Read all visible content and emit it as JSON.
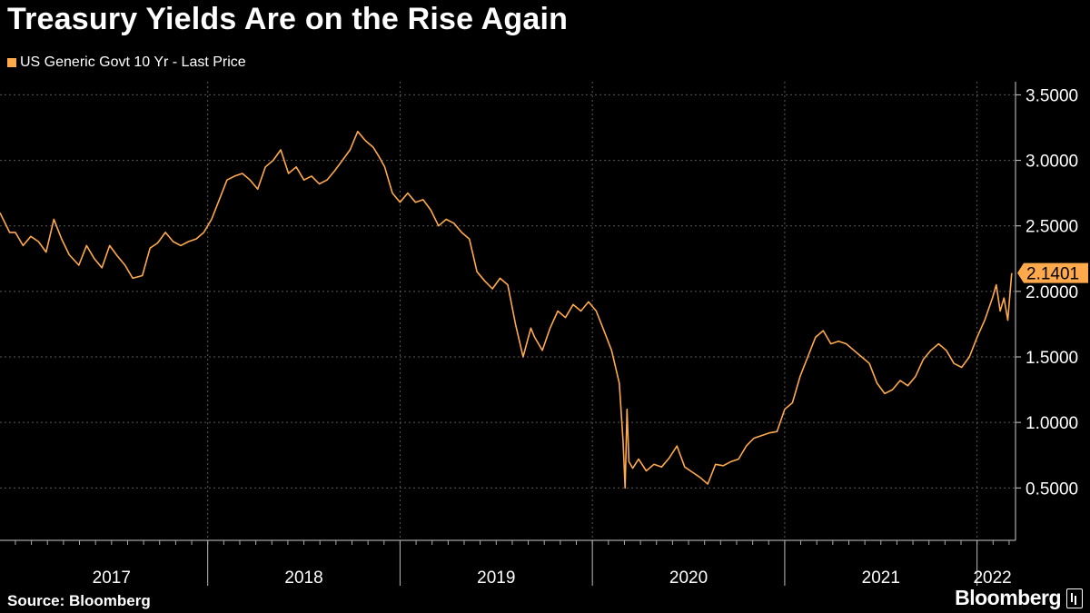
{
  "colors": {
    "background": "#000000",
    "series": "#FFA94D",
    "grid": "#5A5A5A",
    "text": "#FFFFFF"
  },
  "header": {
    "title": "Treasury Yields Are on the Rise Again"
  },
  "footer": {
    "source": "Source: Bloomberg",
    "brand": "Bloomberg",
    "brand_icon": "bloomberg-terminal-icon"
  },
  "chart_data": {
    "type": "line",
    "title": "Treasury Yields Are on the Rise Again",
    "xlabel": "",
    "ylabel": "",
    "grid": true,
    "legend_placement": "top-left",
    "ylim": [
      0.1,
      3.6
    ],
    "yticks": [
      0.5,
      1.0,
      1.5,
      2.0,
      2.5,
      3.0,
      3.5
    ],
    "ytick_labels": [
      "0.5000",
      "1.0000",
      "1.5000",
      "2.0000",
      "2.5000",
      "3.0000",
      "3.5000"
    ],
    "xlim": [
      2016.92,
      2022.2
    ],
    "year_boundaries": [
      2018,
      2019,
      2020,
      2021,
      2022
    ],
    "xtick_labels": [
      {
        "label": "2017",
        "x": 2017.5
      },
      {
        "label": "2018",
        "x": 2018.5
      },
      {
        "label": "2019",
        "x": 2019.5
      },
      {
        "label": "2020",
        "x": 2020.5
      },
      {
        "label": "2021",
        "x": 2021.5
      },
      {
        "label": "2022",
        "x": 2022.08
      }
    ],
    "last_value": {
      "value": 2.14,
      "label": "2.1401"
    },
    "series": [
      {
        "name": "US Generic Govt 10 Yr - Last Price",
        "points": [
          [
            2016.92,
            2.6
          ],
          [
            2016.97,
            2.45
          ],
          [
            2017.0,
            2.45
          ],
          [
            2017.04,
            2.35
          ],
          [
            2017.08,
            2.42
          ],
          [
            2017.12,
            2.38
          ],
          [
            2017.16,
            2.3
          ],
          [
            2017.2,
            2.55
          ],
          [
            2017.24,
            2.4
          ],
          [
            2017.28,
            2.28
          ],
          [
            2017.33,
            2.2
          ],
          [
            2017.37,
            2.35
          ],
          [
            2017.41,
            2.25
          ],
          [
            2017.45,
            2.18
          ],
          [
            2017.49,
            2.35
          ],
          [
            2017.53,
            2.27
          ],
          [
            2017.57,
            2.2
          ],
          [
            2017.61,
            2.1
          ],
          [
            2017.66,
            2.12
          ],
          [
            2017.7,
            2.33
          ],
          [
            2017.74,
            2.37
          ],
          [
            2017.78,
            2.45
          ],
          [
            2017.82,
            2.38
          ],
          [
            2017.86,
            2.35
          ],
          [
            2017.9,
            2.38
          ],
          [
            2017.94,
            2.4
          ],
          [
            2017.98,
            2.45
          ],
          [
            2018.02,
            2.55
          ],
          [
            2018.06,
            2.7
          ],
          [
            2018.1,
            2.85
          ],
          [
            2018.14,
            2.88
          ],
          [
            2018.18,
            2.9
          ],
          [
            2018.22,
            2.85
          ],
          [
            2018.26,
            2.78
          ],
          [
            2018.3,
            2.95
          ],
          [
            2018.34,
            3.0
          ],
          [
            2018.38,
            3.08
          ],
          [
            2018.42,
            2.9
          ],
          [
            2018.46,
            2.95
          ],
          [
            2018.5,
            2.85
          ],
          [
            2018.54,
            2.88
          ],
          [
            2018.58,
            2.82
          ],
          [
            2018.62,
            2.85
          ],
          [
            2018.66,
            2.92
          ],
          [
            2018.7,
            3.0
          ],
          [
            2018.74,
            3.08
          ],
          [
            2018.78,
            3.22
          ],
          [
            2018.82,
            3.15
          ],
          [
            2018.86,
            3.1
          ],
          [
            2018.89,
            3.03
          ],
          [
            2018.92,
            2.95
          ],
          [
            2018.96,
            2.75
          ],
          [
            2019.0,
            2.68
          ],
          [
            2019.04,
            2.75
          ],
          [
            2019.08,
            2.68
          ],
          [
            2019.12,
            2.7
          ],
          [
            2019.16,
            2.62
          ],
          [
            2019.2,
            2.5
          ],
          [
            2019.24,
            2.55
          ],
          [
            2019.28,
            2.52
          ],
          [
            2019.32,
            2.45
          ],
          [
            2019.36,
            2.4
          ],
          [
            2019.4,
            2.15
          ],
          [
            2019.44,
            2.08
          ],
          [
            2019.48,
            2.02
          ],
          [
            2019.52,
            2.1
          ],
          [
            2019.56,
            2.05
          ],
          [
            2019.6,
            1.75
          ],
          [
            2019.64,
            1.5
          ],
          [
            2019.68,
            1.72
          ],
          [
            2019.7,
            1.65
          ],
          [
            2019.74,
            1.55
          ],
          [
            2019.78,
            1.72
          ],
          [
            2019.82,
            1.85
          ],
          [
            2019.86,
            1.8
          ],
          [
            2019.9,
            1.9
          ],
          [
            2019.94,
            1.85
          ],
          [
            2019.98,
            1.92
          ],
          [
            2020.02,
            1.85
          ],
          [
            2020.06,
            1.7
          ],
          [
            2020.1,
            1.55
          ],
          [
            2020.14,
            1.3
          ],
          [
            2020.16,
            0.85
          ],
          [
            2020.17,
            0.5
          ],
          [
            2020.18,
            1.1
          ],
          [
            2020.19,
            0.7
          ],
          [
            2020.21,
            0.65
          ],
          [
            2020.24,
            0.72
          ],
          [
            2020.28,
            0.63
          ],
          [
            2020.32,
            0.68
          ],
          [
            2020.36,
            0.66
          ],
          [
            2020.4,
            0.73
          ],
          [
            2020.44,
            0.82
          ],
          [
            2020.48,
            0.66
          ],
          [
            2020.52,
            0.62
          ],
          [
            2020.56,
            0.58
          ],
          [
            2020.6,
            0.53
          ],
          [
            2020.64,
            0.68
          ],
          [
            2020.68,
            0.67
          ],
          [
            2020.72,
            0.7
          ],
          [
            2020.76,
            0.72
          ],
          [
            2020.8,
            0.82
          ],
          [
            2020.84,
            0.88
          ],
          [
            2020.88,
            0.9
          ],
          [
            2020.92,
            0.92
          ],
          [
            2020.96,
            0.93
          ],
          [
            2021.0,
            1.1
          ],
          [
            2021.04,
            1.15
          ],
          [
            2021.08,
            1.35
          ],
          [
            2021.12,
            1.5
          ],
          [
            2021.16,
            1.65
          ],
          [
            2021.2,
            1.7
          ],
          [
            2021.24,
            1.6
          ],
          [
            2021.28,
            1.62
          ],
          [
            2021.32,
            1.6
          ],
          [
            2021.36,
            1.55
          ],
          [
            2021.4,
            1.5
          ],
          [
            2021.44,
            1.45
          ],
          [
            2021.48,
            1.3
          ],
          [
            2021.52,
            1.22
          ],
          [
            2021.56,
            1.25
          ],
          [
            2021.6,
            1.32
          ],
          [
            2021.64,
            1.28
          ],
          [
            2021.68,
            1.35
          ],
          [
            2021.72,
            1.48
          ],
          [
            2021.76,
            1.55
          ],
          [
            2021.8,
            1.6
          ],
          [
            2021.84,
            1.55
          ],
          [
            2021.88,
            1.45
          ],
          [
            2021.92,
            1.42
          ],
          [
            2021.96,
            1.5
          ],
          [
            2022.0,
            1.65
          ],
          [
            2022.04,
            1.78
          ],
          [
            2022.08,
            1.95
          ],
          [
            2022.1,
            2.05
          ],
          [
            2022.12,
            1.85
          ],
          [
            2022.14,
            1.95
          ],
          [
            2022.16,
            1.78
          ],
          [
            2022.18,
            2.14
          ]
        ]
      }
    ]
  }
}
